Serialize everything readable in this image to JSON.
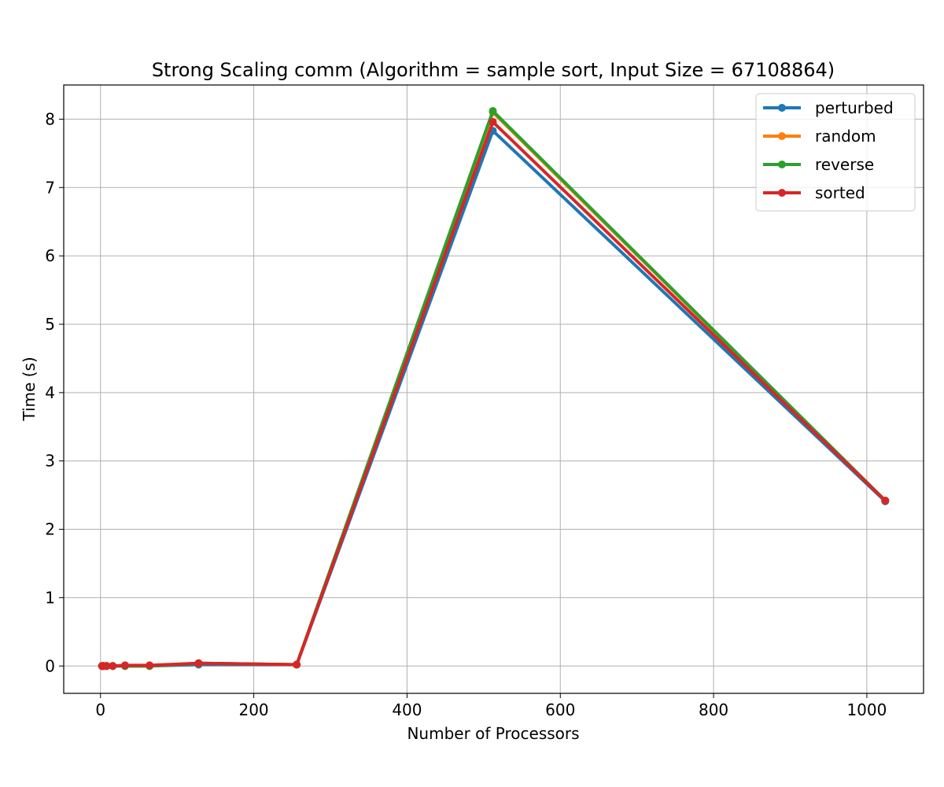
{
  "chart_data": {
    "type": "line",
    "title": "Strong Scaling comm (Algorithm = sample sort, Input Size = 67108864)",
    "xlabel": "Number of Processors",
    "ylabel": "Time (s)",
    "xlim": [
      -48,
      1074
    ],
    "ylim": [
      -0.4,
      8.5
    ],
    "xticks": [
      0,
      200,
      400,
      600,
      800,
      1000
    ],
    "yticks": [
      0,
      1,
      2,
      3,
      4,
      5,
      6,
      7,
      8
    ],
    "grid": true,
    "legend_position": "top-right",
    "x": [
      2,
      4,
      8,
      16,
      32,
      64,
      128,
      256,
      512,
      1024
    ],
    "series": [
      {
        "name": "perturbed",
        "color": "#1f77b4",
        "values": [
          0.0,
          0.0,
          0.0,
          0.0,
          0.0,
          0.0,
          0.02,
          0.02,
          7.83,
          2.41
        ]
      },
      {
        "name": "random",
        "color": "#ff7f0e",
        "values": [
          0.0,
          0.0,
          0.0,
          0.0,
          0.0,
          0.0,
          0.04,
          0.02,
          8.1,
          2.42
        ]
      },
      {
        "name": "reverse",
        "color": "#2ca02c",
        "values": [
          0.0,
          0.0,
          0.0,
          0.0,
          0.0,
          0.0,
          0.04,
          0.02,
          8.12,
          2.42
        ]
      },
      {
        "name": "sorted",
        "color": "#d62728",
        "values": [
          0.0,
          0.0,
          0.0,
          0.0,
          0.01,
          0.01,
          0.04,
          0.02,
          7.96,
          2.42
        ]
      }
    ]
  }
}
